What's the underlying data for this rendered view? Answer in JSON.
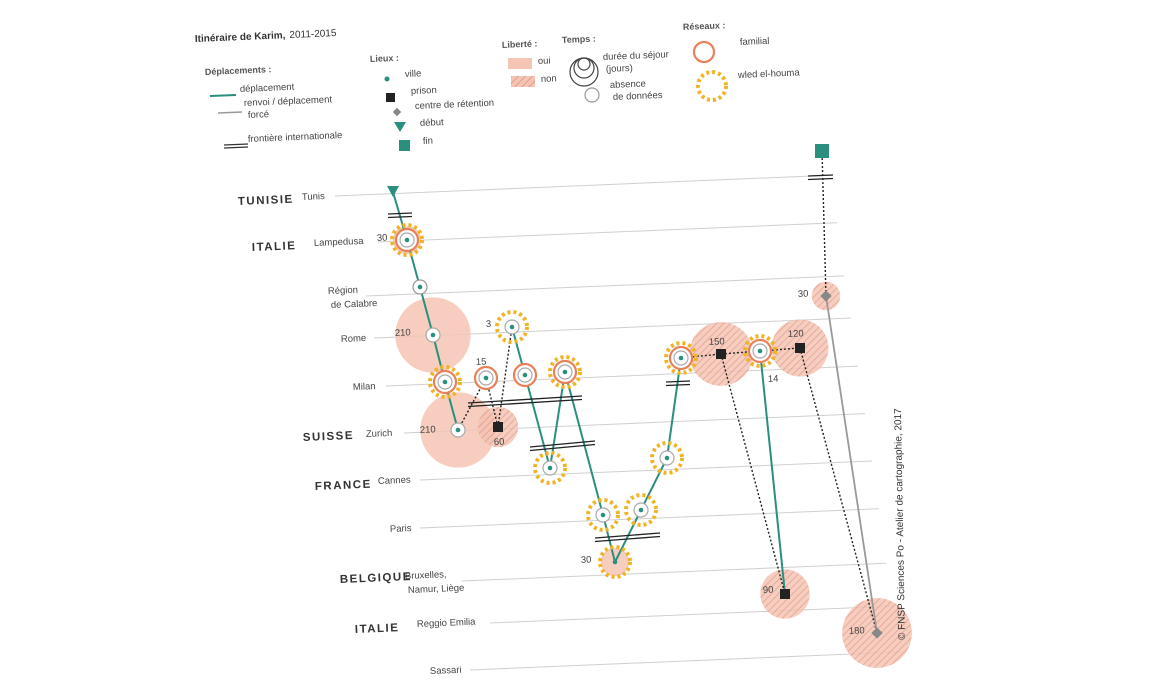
{
  "title": "Itinéraire de Karim,",
  "title_years": "2011-2015",
  "legend": {
    "moves": {
      "heading": "Déplacements :",
      "items": [
        [
          "déplacement"
        ],
        [
          "renvoi / déplacement",
          "forcé"
        ],
        [
          "frontière internationale"
        ]
      ]
    },
    "places": {
      "heading": "Lieux :",
      "items": [
        "ville",
        "prison",
        "centre de rétention",
        "début",
        "fin"
      ]
    },
    "freedom": {
      "heading": "Liberté :",
      "items": [
        "oui",
        "non"
      ]
    },
    "time": {
      "heading": "Temps :",
      "items": [
        [
          "durée du séjour",
          "(jours)"
        ],
        [
          "absence",
          "de données"
        ]
      ]
    },
    "networks": {
      "heading": "Réseaux :",
      "items": [
        "familial",
        "wled el-houma"
      ]
    }
  },
  "rows": [
    {
      "country": "TUNISIE",
      "city": [
        "Tunis"
      ]
    },
    {
      "country": "ITALIE",
      "city": [
        "Lampedusa"
      ]
    },
    {
      "city": [
        "Région",
        "de Calabre"
      ]
    },
    {
      "city": [
        "Rome"
      ]
    },
    {
      "city": [
        "Milan"
      ]
    },
    {
      "country": "SUISSE",
      "city": [
        "Zurich"
      ]
    },
    {
      "country": "FRANCE",
      "city": [
        "Cannes"
      ]
    },
    {
      "city": [
        "Paris"
      ]
    },
    {
      "country": "BELGIQUE",
      "city": [
        "Bruxelles,",
        "Namur, Liège"
      ]
    },
    {
      "country": "ITALIE",
      "city": [
        "Reggio Emilia"
      ]
    },
    {
      "city": [
        "Sassari"
      ]
    }
  ],
  "durations": [
    30,
    210,
    3,
    15,
    210,
    60,
    30,
    150,
    14,
    120,
    30,
    90,
    180
  ],
  "credit": "© FNSP Sciences Po - Atelier de cartographie, 2017"
}
